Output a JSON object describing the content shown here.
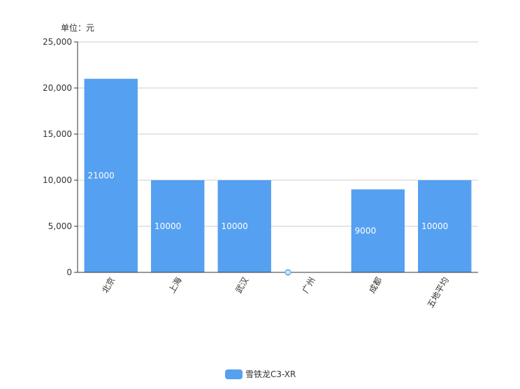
{
  "chart_data": {
    "type": "bar",
    "unit_label": "单位：元",
    "categories": [
      "北京",
      "上海",
      "武汉",
      "广州",
      "成都",
      "五地平均"
    ],
    "series": [
      {
        "name": "雪铁龙C3-XR",
        "values": [
          21000,
          10000,
          10000,
          0,
          9000,
          10000
        ]
      }
    ],
    "data_labels": [
      "21000",
      "10000",
      "10000",
      "0",
      "9000",
      "10000"
    ],
    "y_ticks": [
      0,
      5000,
      10000,
      15000,
      20000,
      25000
    ],
    "y_tick_labels": [
      "0",
      "5,000",
      "10,000",
      "15,000",
      "20,000",
      "25,000"
    ],
    "ylim": [
      0,
      25000
    ],
    "grid": true,
    "legend_position": "bottom-center",
    "colors": {
      "bar": "#55a0f0",
      "grid": "#cccccc",
      "axis": "#333333",
      "label": "#ffffff"
    }
  }
}
